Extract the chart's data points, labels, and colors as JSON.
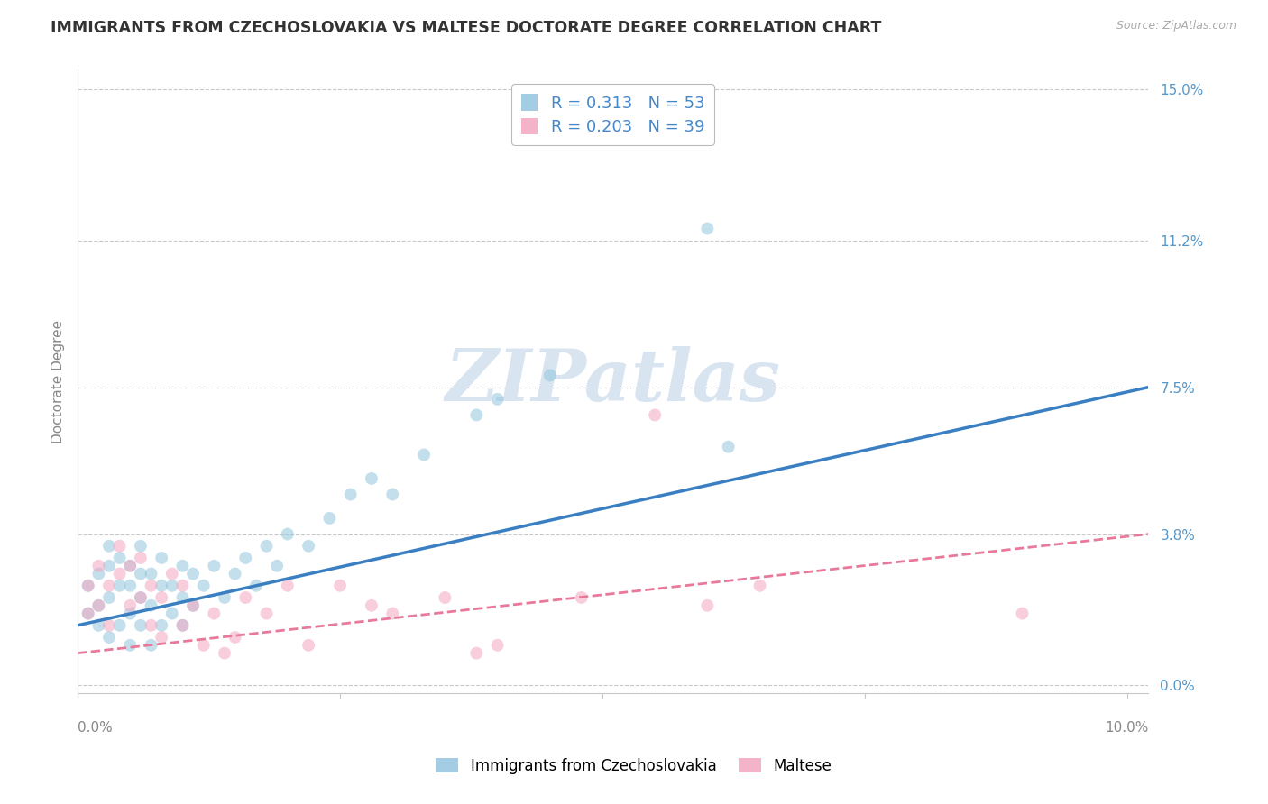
{
  "title": "IMMIGRANTS FROM CZECHOSLOVAKIA VS MALTESE DOCTORATE DEGREE CORRELATION CHART",
  "source_text": "Source: ZipAtlas.com",
  "ylabel": "Doctorate Degree",
  "legend_blue_R": "0.313",
  "legend_blue_N": "53",
  "legend_pink_R": "0.203",
  "legend_pink_N": "39",
  "xlim": [
    0.0,
    0.102
  ],
  "ylim": [
    -0.002,
    0.155
  ],
  "yticks": [
    0.0,
    0.038,
    0.075,
    0.112,
    0.15
  ],
  "ytick_labels": [
    "0.0%",
    "3.8%",
    "7.5%",
    "11.2%",
    "15.0%"
  ],
  "watermark": "ZIPatlas",
  "watermark_color": "#d8e4f0",
  "blue_scatter_x": [
    0.001,
    0.001,
    0.002,
    0.002,
    0.002,
    0.003,
    0.003,
    0.003,
    0.003,
    0.004,
    0.004,
    0.004,
    0.005,
    0.005,
    0.005,
    0.005,
    0.006,
    0.006,
    0.006,
    0.006,
    0.007,
    0.007,
    0.007,
    0.008,
    0.008,
    0.008,
    0.009,
    0.009,
    0.01,
    0.01,
    0.01,
    0.011,
    0.011,
    0.012,
    0.013,
    0.014,
    0.015,
    0.016,
    0.017,
    0.018,
    0.019,
    0.02,
    0.022,
    0.024,
    0.026,
    0.028,
    0.03,
    0.033,
    0.038,
    0.04,
    0.045,
    0.06,
    0.062
  ],
  "blue_scatter_y": [
    0.018,
    0.025,
    0.015,
    0.02,
    0.028,
    0.012,
    0.022,
    0.03,
    0.035,
    0.015,
    0.025,
    0.032,
    0.01,
    0.018,
    0.025,
    0.03,
    0.015,
    0.022,
    0.028,
    0.035,
    0.01,
    0.02,
    0.028,
    0.015,
    0.025,
    0.032,
    0.018,
    0.025,
    0.015,
    0.022,
    0.03,
    0.02,
    0.028,
    0.025,
    0.03,
    0.022,
    0.028,
    0.032,
    0.025,
    0.035,
    0.03,
    0.038,
    0.035,
    0.042,
    0.048,
    0.052,
    0.048,
    0.058,
    0.068,
    0.072,
    0.078,
    0.115,
    0.06
  ],
  "pink_scatter_x": [
    0.001,
    0.001,
    0.002,
    0.002,
    0.003,
    0.003,
    0.004,
    0.004,
    0.005,
    0.005,
    0.006,
    0.006,
    0.007,
    0.007,
    0.008,
    0.008,
    0.009,
    0.01,
    0.01,
    0.011,
    0.012,
    0.013,
    0.014,
    0.015,
    0.016,
    0.018,
    0.02,
    0.022,
    0.025,
    0.028,
    0.03,
    0.035,
    0.038,
    0.04,
    0.048,
    0.055,
    0.06,
    0.065,
    0.09
  ],
  "pink_scatter_y": [
    0.018,
    0.025,
    0.02,
    0.03,
    0.015,
    0.025,
    0.028,
    0.035,
    0.02,
    0.03,
    0.022,
    0.032,
    0.015,
    0.025,
    0.012,
    0.022,
    0.028,
    0.015,
    0.025,
    0.02,
    0.01,
    0.018,
    0.008,
    0.012,
    0.022,
    0.018,
    0.025,
    0.01,
    0.025,
    0.02,
    0.018,
    0.022,
    0.008,
    0.01,
    0.022,
    0.068,
    0.02,
    0.025,
    0.018
  ],
  "blue_line_x": [
    0.0,
    0.102
  ],
  "blue_line_y": [
    0.015,
    0.075
  ],
  "pink_line_x": [
    0.0,
    0.102
  ],
  "pink_line_y": [
    0.008,
    0.038
  ],
  "blue_color": "#92c5de",
  "pink_color": "#f4a6c0",
  "blue_line_color": "#3a7fc1",
  "pink_line_color": "#e8799a",
  "grid_color": "#c8c8c8",
  "title_color": "#333333",
  "axis_label_color": "#888888",
  "right_tick_color": "#5599cc",
  "legend_text_color": "#333333",
  "legend_value_color": "#4488cc",
  "title_fontsize": 12.5,
  "axis_label_fontsize": 11,
  "tick_fontsize": 11,
  "legend_fontsize": 13,
  "scatter_alpha": 0.55,
  "scatter_size": 100
}
